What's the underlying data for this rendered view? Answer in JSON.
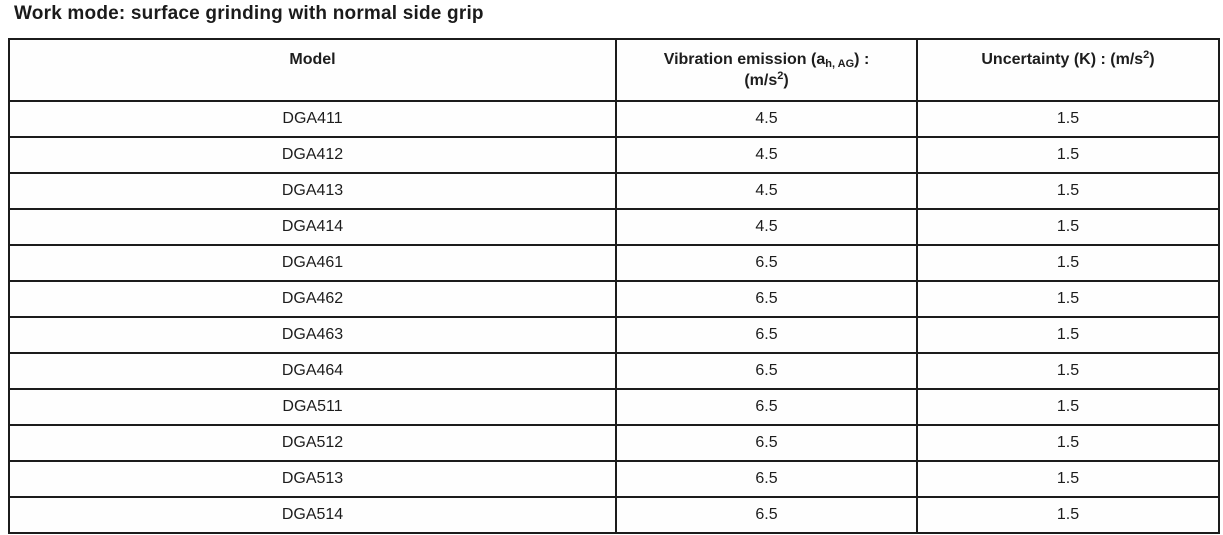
{
  "page": {
    "title": "Work mode: surface grinding with normal side grip"
  },
  "colors": {
    "text": "#1d1d1d",
    "border": "#1c1c1c",
    "background": "#ffffff"
  },
  "table": {
    "headers": {
      "model": "Model",
      "vibration": {
        "line1_pre": "Vibration emission (a",
        "line1_sub": "h, AG",
        "line1_post": ") :",
        "line2_pre": "(m/s",
        "line2_sup": "2",
        "line2_post": ")"
      },
      "uncertainty": {
        "pre": "Uncertainty (K) : (m/s",
        "sup": "2",
        "post": ")"
      }
    },
    "rows": [
      {
        "model": "DGA411",
        "vibration": "4.5",
        "uncertainty": "1.5"
      },
      {
        "model": "DGA412",
        "vibration": "4.5",
        "uncertainty": "1.5"
      },
      {
        "model": "DGA413",
        "vibration": "4.5",
        "uncertainty": "1.5"
      },
      {
        "model": "DGA414",
        "vibration": "4.5",
        "uncertainty": "1.5"
      },
      {
        "model": "DGA461",
        "vibration": "6.5",
        "uncertainty": "1.5"
      },
      {
        "model": "DGA462",
        "vibration": "6.5",
        "uncertainty": "1.5"
      },
      {
        "model": "DGA463",
        "vibration": "6.5",
        "uncertainty": "1.5"
      },
      {
        "model": "DGA464",
        "vibration": "6.5",
        "uncertainty": "1.5"
      },
      {
        "model": "DGA511",
        "vibration": "6.5",
        "uncertainty": "1.5"
      },
      {
        "model": "DGA512",
        "vibration": "6.5",
        "uncertainty": "1.5"
      },
      {
        "model": "DGA513",
        "vibration": "6.5",
        "uncertainty": "1.5"
      },
      {
        "model": "DGA514",
        "vibration": "6.5",
        "uncertainty": "1.5"
      }
    ]
  }
}
